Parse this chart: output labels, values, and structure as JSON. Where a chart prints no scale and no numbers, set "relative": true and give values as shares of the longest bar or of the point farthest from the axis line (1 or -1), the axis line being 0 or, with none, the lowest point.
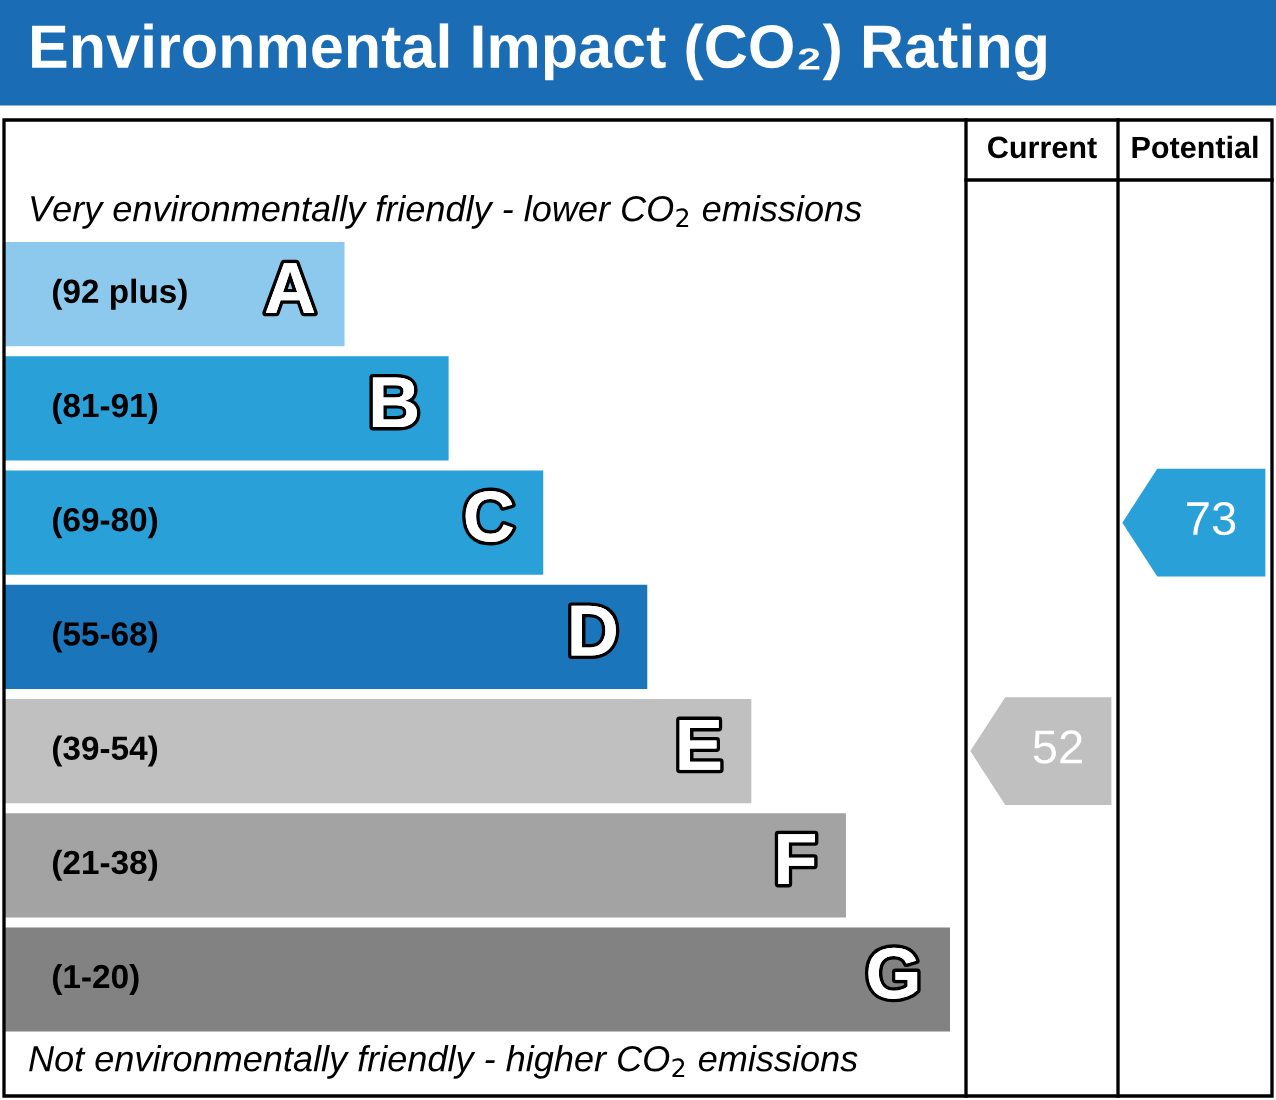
{
  "chart_data": {
    "type": "bar",
    "orientation": "horizontal",
    "relative": true,
    "title": "Environmental Impact (CO₂) Rating",
    "categories": [
      "A",
      "B",
      "C",
      "D",
      "E",
      "F",
      "G"
    ],
    "values": [
      0.36,
      0.47,
      0.57,
      0.68,
      0.79,
      0.89,
      1.0
    ],
    "colors": [
      "#8cc9ec",
      "#2aa0d9",
      "#2aa0d9",
      "#1b75bb",
      "#c1c0c0",
      "#a3a3a3",
      "#828282"
    ],
    "annotations": [
      "(92 plus)",
      "(81-91)",
      "(69-80)",
      "(55-68)",
      "(39-54)",
      "(21-38)",
      "(1-20)",
      "Very environmentally friendly - lower CO$_{2}$ emissions",
      "Not environmentally friendly - higher CO$_{2}$ emissions",
      "Current",
      "Potential",
      "52",
      "73"
    ]
  }
}
